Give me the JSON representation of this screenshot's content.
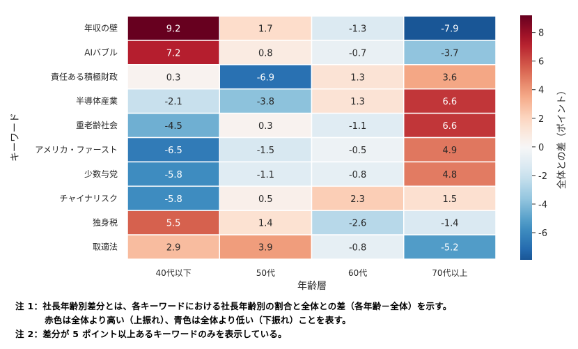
{
  "chart_data": {
    "type": "heatmap",
    "title": "",
    "xlabel": "年齢層",
    "ylabel": "キーワード",
    "x_categories": [
      "40代以下",
      "50代",
      "60代",
      "70代以上"
    ],
    "y_categories": [
      "年収の壁",
      "AIバブル",
      "責任ある積極財政",
      "半導体産業",
      "重老齢社会",
      "アメリカ・ファースト",
      "少数与党",
      "チャイナリスク",
      "独身税",
      "取適法"
    ],
    "values": [
      [
        9.2,
        1.7,
        -1.3,
        -7.9
      ],
      [
        7.2,
        0.8,
        -0.7,
        -3.7
      ],
      [
        0.3,
        -6.9,
        1.3,
        3.6
      ],
      [
        -2.1,
        -3.8,
        1.3,
        6.6
      ],
      [
        -4.5,
        0.3,
        -1.1,
        6.6
      ],
      [
        -6.5,
        -1.5,
        -0.5,
        4.9
      ],
      [
        -5.8,
        -1.1,
        -0.8,
        4.8
      ],
      [
        -5.8,
        0.5,
        2.3,
        1.5
      ],
      [
        5.5,
        1.4,
        -2.6,
        -1.4
      ],
      [
        2.9,
        3.9,
        -0.8,
        -5.2
      ]
    ],
    "value_labels": [
      [
        "9.2",
        "1.7",
        "-1.3",
        "-7.9"
      ],
      [
        "7.2",
        "0.8",
        "-0.7",
        "-3.7"
      ],
      [
        "0.3",
        "-6.9",
        "1.3",
        "3.6"
      ],
      [
        "-2.1",
        "-3.8",
        "1.3",
        "6.6"
      ],
      [
        "-4.5",
        "0.3",
        "-1.1",
        "6.6"
      ],
      [
        "-6.5",
        "-1.5",
        "-0.5",
        "4.9"
      ],
      [
        "-5.8",
        "-1.1",
        "-0.8",
        "4.8"
      ],
      [
        "-5.8",
        "0.5",
        "2.3",
        "1.5"
      ],
      [
        "5.5",
        "1.4",
        "-2.6",
        "-1.4"
      ],
      [
        "2.9",
        "3.9",
        "-0.8",
        "-5.2"
      ]
    ],
    "colormap": "RdBu_r",
    "center": 0,
    "vlim": [
      -7.9,
      9.2
    ],
    "colorbar": {
      "label": "全体との差（ポイント）",
      "ticks": [
        8,
        6,
        4,
        2,
        0,
        -2,
        -4,
        -6
      ],
      "tick_labels": [
        "8",
        "6",
        "4",
        "2",
        "0",
        "-2",
        "-4",
        "-6"
      ]
    },
    "grid": false
  },
  "notes": {
    "note1_line1": "注 1：社長年齢別差分とは、各キーワードにおける社長年齢別の割合と全体との差（各年齢－全体）を示す。",
    "note1_line2": "赤色は全体より高い（上振れ）、青色は全体より低い（下振れ）ことを表す。",
    "note2": "注 2：差分が 5 ポイント以上あるキーワードのみを表示している。"
  }
}
